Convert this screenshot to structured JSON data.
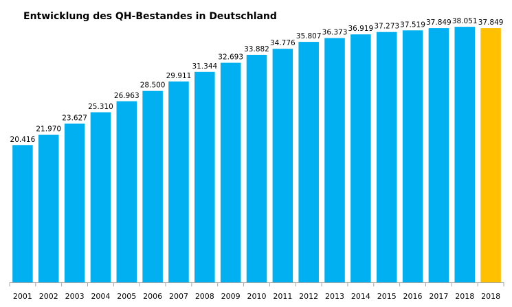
{
  "chart_data": {
    "type": "bar",
    "title": "Entwicklung des QH-Bestandes in Deutschland",
    "xlabel": "",
    "ylabel": "",
    "ylim": [
      0,
      40000
    ],
    "grid": false,
    "categories": [
      "2001",
      "2002",
      "2003",
      "2004",
      "2005",
      "2006",
      "2007",
      "2008",
      "2009",
      "2010",
      "2011",
      "2012",
      "2013",
      "2014",
      "2015",
      "2016",
      "2017",
      "2018",
      "2018"
    ],
    "values": [
      20416,
      21970,
      23627,
      25310,
      26963,
      28500,
      29911,
      31344,
      32693,
      33882,
      34776,
      35807,
      36373,
      36919,
      37273,
      37519,
      37849,
      38051,
      37849
    ],
    "data_labels": [
      "20.416",
      "21.970",
      "23.627",
      "25.310",
      "26.963",
      "28.500",
      "29.911",
      "31.344",
      "32.693",
      "33.882",
      "34.776",
      "35.807",
      "36.373",
      "36.919",
      "37.273",
      "37.519",
      "37.849",
      "38.051",
      "37.849"
    ],
    "colors": {
      "default": "#00B0F0",
      "highlight": "#FFC000",
      "axis": "#A6A6A6"
    },
    "highlight_index": 18
  }
}
